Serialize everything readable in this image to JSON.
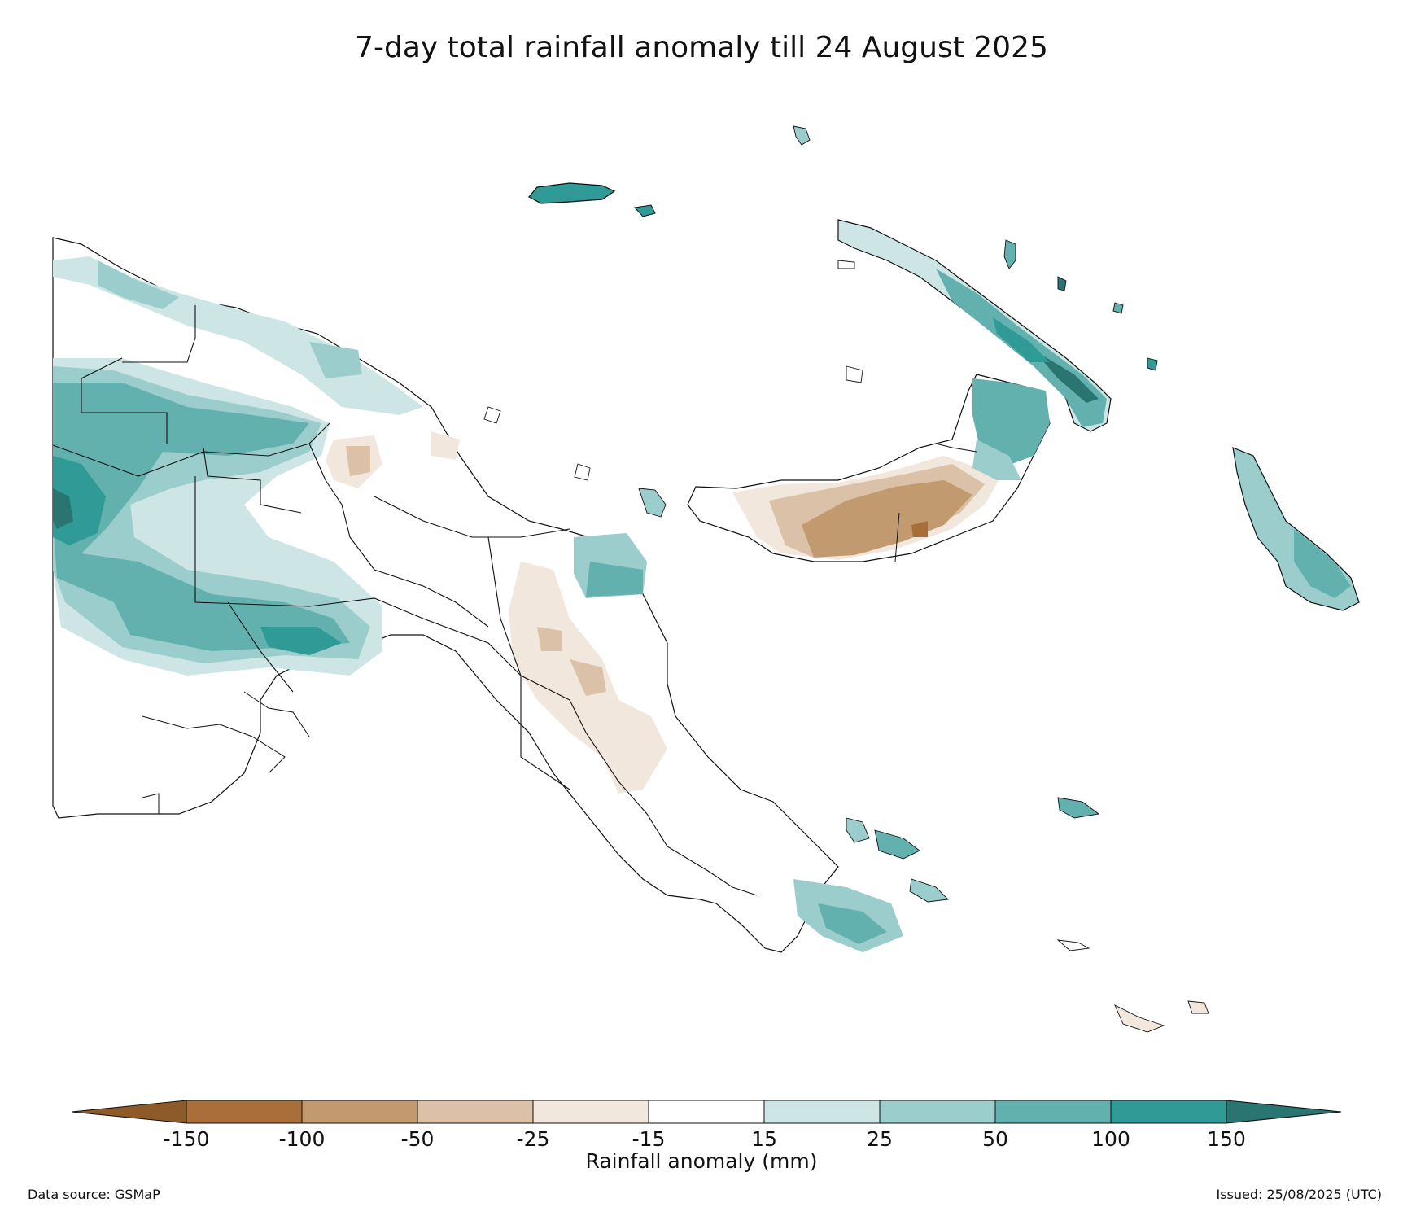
{
  "title": "7-day total rainfall anomaly till 24 August 2025",
  "colorbar": {
    "label": "Rainfall anomaly (mm)",
    "ticks": [
      "-150",
      "-100",
      "-50",
      "-25",
      "-15",
      "15",
      "25",
      "50",
      "100",
      "150"
    ],
    "under_color": "#8e5a2a",
    "over_color": "#2a7472",
    "bins": [
      {
        "from": "-150",
        "to": "-100",
        "color": "#a86f3a"
      },
      {
        "from": "-100",
        "to": "-50",
        "color": "#c29a70"
      },
      {
        "from": "-50",
        "to": "-25",
        "color": "#dac1a8"
      },
      {
        "from": "-25",
        "to": "-15",
        "color": "#f1e7dd"
      },
      {
        "from": "-15",
        "to": "15",
        "color": "#ffffff"
      },
      {
        "from": "15",
        "to": "25",
        "color": "#cde6e5"
      },
      {
        "from": "25",
        "to": "50",
        "color": "#9acdcb"
      },
      {
        "from": "50",
        "to": "100",
        "color": "#63b1ae"
      },
      {
        "from": "100",
        "to": "150",
        "color": "#309a96"
      }
    ]
  },
  "footer": {
    "source": "Data source: GSMaP",
    "issued": "Issued: 25/08/2025 (UTC)"
  }
}
